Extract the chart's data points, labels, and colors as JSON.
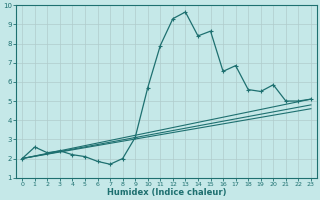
{
  "title": "",
  "xlabel": "Humidex (Indice chaleur)",
  "ylabel": "",
  "bg_color": "#c5e8e8",
  "grid_color": "#b0cccc",
  "line_color": "#1e7070",
  "marker_color": "#1e7070",
  "xlim": [
    -0.5,
    23.5
  ],
  "ylim": [
    1,
    10
  ],
  "xticks": [
    0,
    1,
    2,
    3,
    4,
    5,
    6,
    7,
    8,
    9,
    10,
    11,
    12,
    13,
    14,
    15,
    16,
    17,
    18,
    19,
    20,
    21,
    22,
    23
  ],
  "yticks": [
    1,
    2,
    3,
    4,
    5,
    6,
    7,
    8,
    9,
    10
  ],
  "curve1_x": [
    0,
    1,
    2,
    3,
    4,
    5,
    6,
    7,
    8,
    9,
    10,
    11,
    12,
    13,
    14,
    15,
    16,
    17,
    18,
    19,
    20,
    21,
    22,
    23
  ],
  "curve1_y": [
    2.0,
    2.6,
    2.3,
    2.4,
    2.2,
    2.1,
    1.85,
    1.7,
    2.0,
    3.1,
    5.7,
    7.9,
    9.3,
    9.65,
    8.4,
    8.65,
    6.55,
    6.85,
    5.6,
    5.5,
    5.85,
    5.0,
    5.0,
    5.1
  ],
  "curve2_x": [
    0,
    23
  ],
  "curve2_y": [
    2.0,
    5.1
  ],
  "curve3_x": [
    0,
    23
  ],
  "curve3_y": [
    2.0,
    4.8
  ],
  "curve4_x": [
    0,
    23
  ],
  "curve4_y": [
    2.0,
    4.6
  ]
}
